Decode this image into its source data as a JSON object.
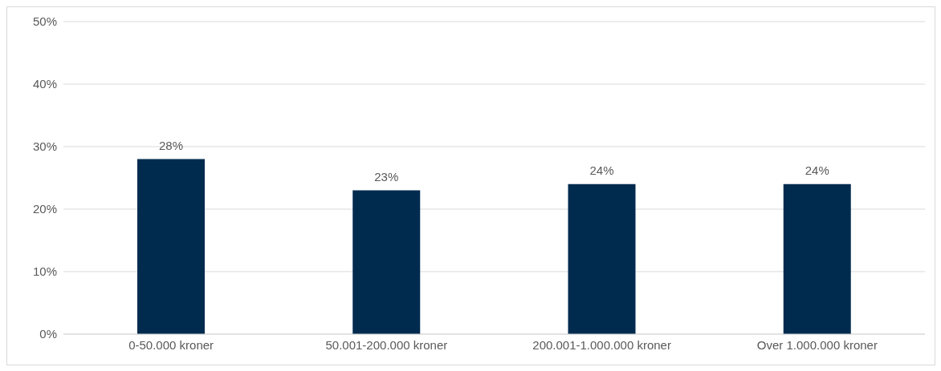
{
  "chart_data": {
    "type": "bar",
    "categories": [
      "0-50.000 kroner",
      "50.001-200.000 kroner",
      "200.001-1.000.000 kroner",
      "Over 1.000.000 kroner"
    ],
    "values": [
      28,
      23,
      24,
      24
    ],
    "value_labels": [
      "28%",
      "23%",
      "24%",
      "24%"
    ],
    "color": "#002b4f",
    "ylim": [
      0,
      50
    ],
    "yticks": [
      {
        "value": 0,
        "label": "0%"
      },
      {
        "value": 10,
        "label": "10%"
      },
      {
        "value": 20,
        "label": "20%"
      },
      {
        "value": 30,
        "label": "30%"
      },
      {
        "value": 40,
        "label": "40%"
      },
      {
        "value": 50,
        "label": "50%"
      }
    ],
    "grid": "y",
    "legend": false
  }
}
